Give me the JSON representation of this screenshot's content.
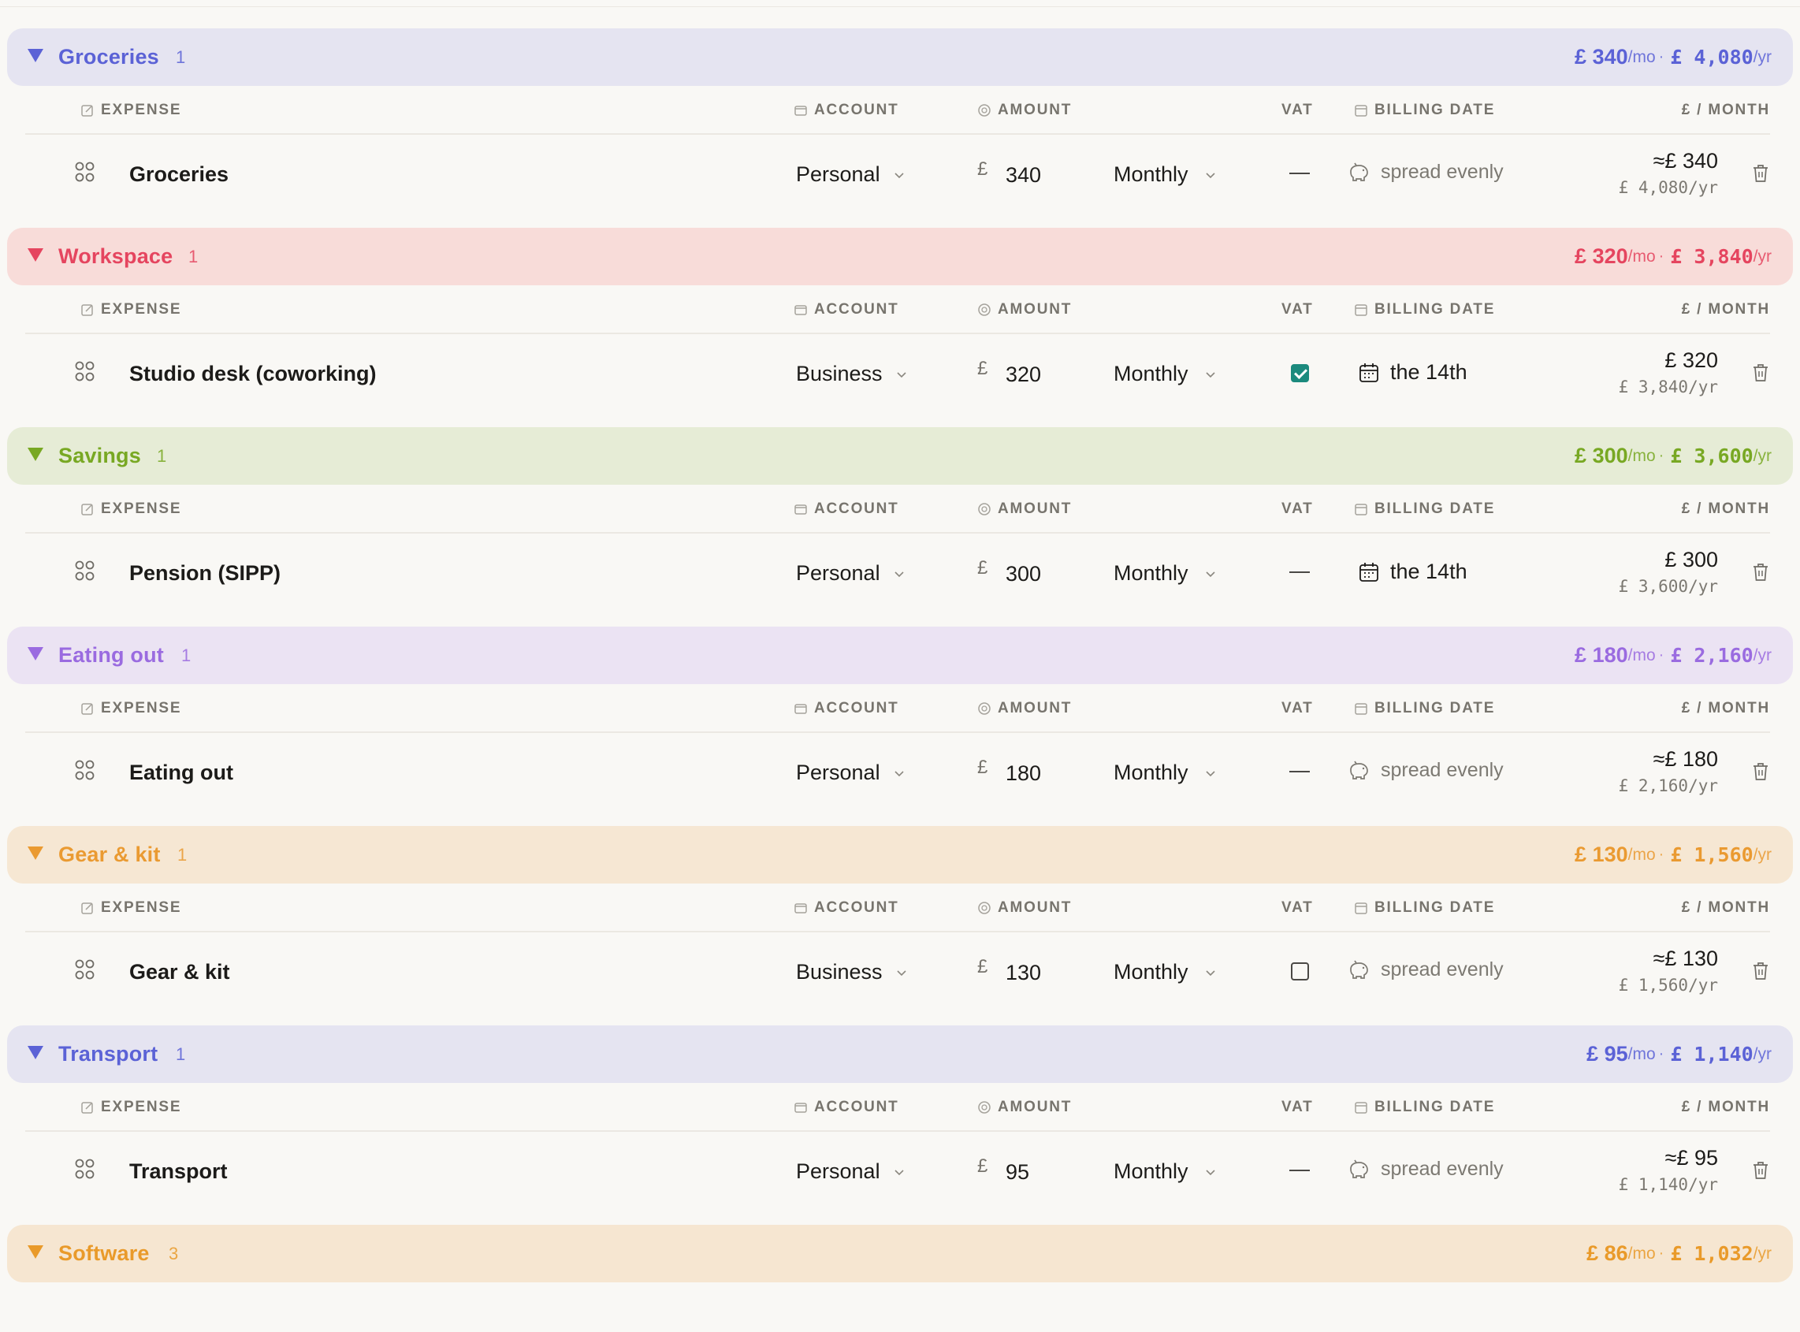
{
  "columns": {
    "expense": "EXPENSE",
    "account": "ACCOUNT",
    "amount": "AMOUNT",
    "vat": "VAT",
    "billing_date": "BILLING DATE",
    "per_month": "£ / MONTH"
  },
  "colors": {
    "blue": "#5b62d6",
    "red": "#e5455f",
    "green": "#78a823",
    "purple": "#9a6be0",
    "orange": "#ea9a31",
    "vat_checked": "#1c8a7d"
  },
  "groups": [
    {
      "name": "Groceries",
      "count": "1",
      "monthly": "£ 340",
      "mo_unit": "/mo",
      "sep": "·",
      "yearly": "£ 4,080",
      "yr_unit": "/yr",
      "row": {
        "name": "Groceries",
        "account": "Personal",
        "currency": "£",
        "amount": "340",
        "frequency": "Monthly",
        "vat": "none",
        "billing": "spread evenly",
        "billing_icon": "piggy-bank-icon",
        "per_month": "≈£ 340",
        "per_year": "£ 4,080/yr"
      }
    },
    {
      "name": "Workspace",
      "count": "1",
      "monthly": "£ 320",
      "mo_unit": "/mo",
      "sep": "·",
      "yearly": "£ 3,840",
      "yr_unit": "/yr",
      "row": {
        "name": "Studio desk (coworking)",
        "account": "Business",
        "currency": "£",
        "amount": "320",
        "frequency": "Monthly",
        "vat": "checked",
        "billing": "the 14th",
        "billing_icon": "calendar-icon",
        "per_month": "£ 320",
        "per_year": "£ 3,840/yr"
      }
    },
    {
      "name": "Savings",
      "count": "1",
      "monthly": "£ 300",
      "mo_unit": "/mo",
      "sep": "·",
      "yearly": "£ 3,600",
      "yr_unit": "/yr",
      "row": {
        "name": "Pension (SIPP)",
        "account": "Personal",
        "currency": "£",
        "amount": "300",
        "frequency": "Monthly",
        "vat": "none",
        "billing": "the 14th",
        "billing_icon": "calendar-icon",
        "per_month": "£ 300",
        "per_year": "£ 3,600/yr"
      }
    },
    {
      "name": "Eating out",
      "count": "1",
      "monthly": "£ 180",
      "mo_unit": "/mo",
      "sep": "·",
      "yearly": "£ 2,160",
      "yr_unit": "/yr",
      "row": {
        "name": "Eating out",
        "account": "Personal",
        "currency": "£",
        "amount": "180",
        "frequency": "Monthly",
        "vat": "none",
        "billing": "spread evenly",
        "billing_icon": "piggy-bank-icon",
        "per_month": "≈£ 180",
        "per_year": "£ 2,160/yr"
      }
    },
    {
      "name": "Gear & kit",
      "count": "1",
      "monthly": "£ 130",
      "mo_unit": "/mo",
      "sep": "·",
      "yearly": "£ 1,560",
      "yr_unit": "/yr",
      "row": {
        "name": "Gear & kit",
        "account": "Business",
        "currency": "£",
        "amount": "130",
        "frequency": "Monthly",
        "vat": "unchecked",
        "billing": "spread evenly",
        "billing_icon": "piggy-bank-icon",
        "per_month": "≈£ 130",
        "per_year": "£ 1,560/yr"
      }
    },
    {
      "name": "Transport",
      "count": "1",
      "monthly": "£ 95",
      "mo_unit": "/mo",
      "sep": "·",
      "yearly": "£ 1,140",
      "yr_unit": "/yr",
      "row": {
        "name": "Transport",
        "account": "Personal",
        "currency": "£",
        "amount": "95",
        "frequency": "Monthly",
        "vat": "none",
        "billing": "spread evenly",
        "billing_icon": "piggy-bank-icon",
        "per_month": "≈£ 95",
        "per_year": "£ 1,140/yr"
      }
    },
    {
      "name": "Software",
      "count": "3",
      "monthly": "£ 86",
      "mo_unit": "/mo",
      "sep": "·",
      "yearly": "£ 1,032",
      "yr_unit": "/yr"
    }
  ]
}
